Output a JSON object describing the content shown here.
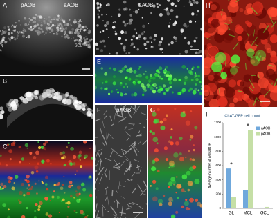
{
  "panels": {
    "A": {
      "label": "A",
      "regions": [
        "pAOB",
        "aAOB"
      ],
      "layers": [
        "GL",
        "MCL",
        "GCL"
      ]
    },
    "B": {
      "label": "B"
    },
    "C": {
      "label": "C"
    },
    "D": {
      "label": "D",
      "region": "aAOB"
    },
    "E": {
      "label": "E"
    },
    "F": {
      "label": "F",
      "region": "pAOB"
    },
    "G": {
      "label": "G"
    },
    "H": {
      "label": "H"
    }
  },
  "chart_data": {
    "type": "bar",
    "panel_label": "I",
    "title": "ChAT-GFP cell count",
    "y_label": "Average number of cells/AOB",
    "categories": [
      "GL",
      "MCL",
      "GCL"
    ],
    "series": [
      {
        "name": "aAOB",
        "color": "#6fa8dc",
        "values": [
          560,
          260,
          10
        ]
      },
      {
        "name": "pAOB",
        "color": "#c5dfa6",
        "values": [
          160,
          1100,
          20
        ]
      }
    ],
    "annotations": [
      "*",
      "*"
    ],
    "ylim": [
      0,
      1200
    ],
    "yticks": [
      0,
      200,
      400,
      600,
      800,
      1000,
      1200
    ],
    "legend": "top-right"
  }
}
